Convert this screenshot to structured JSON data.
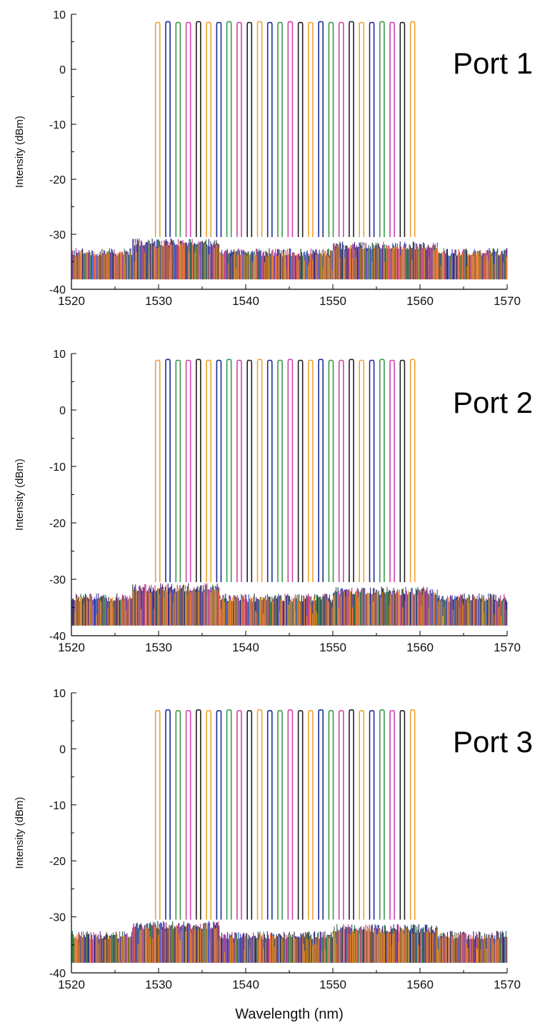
{
  "figure": {
    "xlabel": "Wavelength (nm)"
  },
  "chart_data": [
    {
      "type": "line",
      "title": "Port 1",
      "ylabel": "Intensity (dBm)",
      "xlim": [
        1520,
        1570
      ],
      "ylim": [
        -40,
        10
      ],
      "x_ticks": [
        "1520",
        "1530",
        "1540",
        "1550",
        "1560",
        "1570"
      ],
      "y_ticks": [
        "10",
        "0",
        "-10",
        "-20",
        "-30",
        "-40"
      ],
      "channel_count": 26,
      "channel_start_nm": 1529.9,
      "channel_spacing_nm": 1.17,
      "peak_dbm": 8.5,
      "noise_floor_dbm": -33,
      "colors": [
        "#f0a030",
        "#1a2a9a",
        "#3a9a4a",
        "#d040b0",
        "#202020"
      ]
    },
    {
      "type": "line",
      "title": "Port 2",
      "ylabel": "Intensity (dBm)",
      "xlim": [
        1520,
        1570
      ],
      "ylim": [
        -40,
        10
      ],
      "x_ticks": [
        "1520",
        "1530",
        "1540",
        "1550",
        "1560",
        "1570"
      ],
      "y_ticks": [
        "10",
        "0",
        "-10",
        "-20",
        "-30",
        "-40"
      ],
      "channel_count": 26,
      "channel_start_nm": 1529.9,
      "channel_spacing_nm": 1.17,
      "peak_dbm": 8.8,
      "noise_floor_dbm": -33,
      "colors": [
        "#f0a030",
        "#1a2a9a",
        "#3a9a4a",
        "#d040b0",
        "#202020"
      ]
    },
    {
      "type": "line",
      "title": "Port 3",
      "ylabel": "Intensity (dBm)",
      "xlim": [
        1520,
        1570
      ],
      "ylim": [
        -40,
        10
      ],
      "x_ticks": [
        "1520",
        "1530",
        "1540",
        "1550",
        "1560",
        "1570"
      ],
      "y_ticks": [
        "10",
        "0",
        "-10",
        "-20",
        "-30",
        "-40"
      ],
      "channel_count": 26,
      "channel_start_nm": 1529.9,
      "channel_spacing_nm": 1.17,
      "peak_dbm": 6.8,
      "noise_floor_dbm": -33,
      "colors": [
        "#f0a030",
        "#1a2a9a",
        "#3a9a4a",
        "#d040b0",
        "#202020"
      ]
    }
  ]
}
